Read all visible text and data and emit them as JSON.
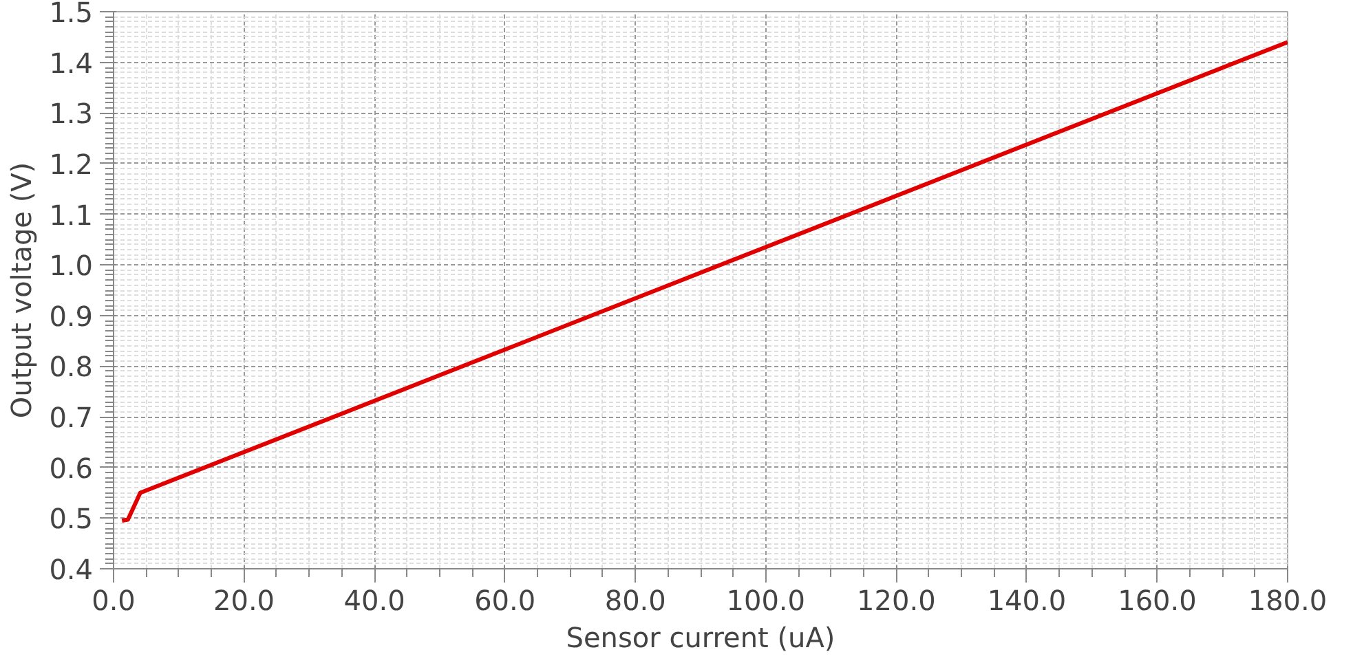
{
  "chart_data": {
    "type": "line",
    "xlabel": "Sensor current (uA)",
    "ylabel": "Output voltage (V)",
    "x": [
      1.3,
      2.2,
      4.1,
      180
    ],
    "series": [
      {
        "color": "#e00000",
        "values": [
          0.495,
          0.497,
          0.55,
          1.44
        ]
      }
    ],
    "xlim": [
      0,
      180
    ],
    "ylim": [
      0.4,
      1.5
    ],
    "xticks": [
      {
        "value": 0,
        "label": "0.0"
      },
      {
        "value": 20,
        "label": "20.0"
      },
      {
        "value": 40,
        "label": "40.0"
      },
      {
        "value": 60,
        "label": "60.0"
      },
      {
        "value": 80,
        "label": "80.0"
      },
      {
        "value": 100,
        "label": "100.0"
      },
      {
        "value": 120,
        "label": "120.0"
      },
      {
        "value": 140,
        "label": "140.0"
      },
      {
        "value": 160,
        "label": "160.0"
      },
      {
        "value": 180,
        "label": "180.0"
      }
    ],
    "yticks": [
      0.4,
      0.5,
      0.6,
      0.7,
      0.8,
      0.9,
      {
        "value": 1.0,
        "label": "1.0"
      },
      1.1,
      1.2,
      1.3,
      1.4,
      1.5
    ],
    "grid": true,
    "marker": "none",
    "line_style": "solid"
  }
}
